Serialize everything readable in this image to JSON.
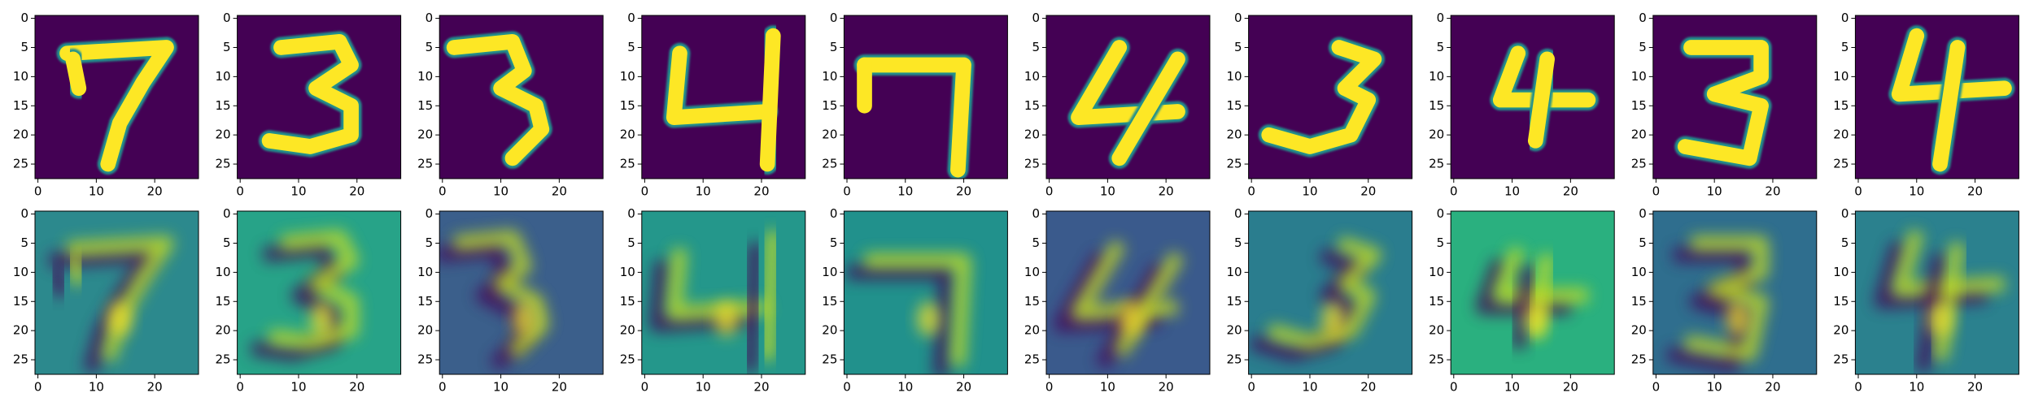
{
  "chart_data": [
    {
      "type": "image",
      "xlim": [
        -0.5,
        27.5
      ],
      "ylim": [
        27.5,
        -0.5
      ],
      "xticks": [
        0,
        10,
        20
      ],
      "yticks": [
        0,
        5,
        10,
        15,
        20,
        25
      ]
    },
    {
      "type": "image",
      "xlim": [
        -0.5,
        27.5
      ],
      "ylim": [
        27.5,
        -0.5
      ],
      "xticks": [
        0,
        10,
        20
      ],
      "yticks": [
        0,
        5,
        10,
        15,
        20,
        25
      ]
    },
    {
      "type": "image",
      "xlim": [
        -0.5,
        27.5
      ],
      "ylim": [
        27.5,
        -0.5
      ],
      "xticks": [
        0,
        10,
        20
      ],
      "yticks": [
        0,
        5,
        10,
        15,
        20,
        25
      ]
    },
    {
      "type": "image",
      "xlim": [
        -0.5,
        27.5
      ],
      "ylim": [
        27.5,
        -0.5
      ],
      "xticks": [
        0,
        10,
        20
      ],
      "yticks": [
        0,
        5,
        10,
        15,
        20,
        25
      ]
    },
    {
      "type": "image",
      "xlim": [
        -0.5,
        27.5
      ],
      "ylim": [
        27.5,
        -0.5
      ],
      "xticks": [
        0,
        10,
        20
      ],
      "yticks": [
        0,
        5,
        10,
        15,
        20,
        25
      ]
    },
    {
      "type": "image",
      "xlim": [
        -0.5,
        27.5
      ],
      "ylim": [
        27.5,
        -0.5
      ],
      "xticks": [
        0,
        10,
        20
      ],
      "yticks": [
        0,
        5,
        10,
        15,
        20,
        25
      ]
    },
    {
      "type": "image",
      "xlim": [
        -0.5,
        27.5
      ],
      "ylim": [
        27.5,
        -0.5
      ],
      "xticks": [
        0,
        10,
        20
      ],
      "yticks": [
        0,
        5,
        10,
        15,
        20,
        25
      ]
    },
    {
      "type": "image",
      "xlim": [
        -0.5,
        27.5
      ],
      "ylim": [
        27.5,
        -0.5
      ],
      "xticks": [
        0,
        10,
        20
      ],
      "yticks": [
        0,
        5,
        10,
        15,
        20,
        25
      ]
    },
    {
      "type": "image",
      "xlim": [
        -0.5,
        27.5
      ],
      "ylim": [
        27.5,
        -0.5
      ],
      "xticks": [
        0,
        10,
        20
      ],
      "yticks": [
        0,
        5,
        10,
        15,
        20,
        25
      ]
    },
    {
      "type": "image",
      "xlim": [
        -0.5,
        27.5
      ],
      "ylim": [
        27.5,
        -0.5
      ],
      "xticks": [
        0,
        10,
        20
      ],
      "yticks": [
        0,
        5,
        10,
        15,
        20,
        25
      ]
    },
    {
      "type": "image",
      "xlim": [
        -0.5,
        27.5
      ],
      "ylim": [
        27.5,
        -0.5
      ],
      "xticks": [
        0,
        10,
        20
      ],
      "yticks": [
        0,
        5,
        10,
        15,
        20,
        25
      ]
    },
    {
      "type": "image",
      "xlim": [
        -0.5,
        27.5
      ],
      "ylim": [
        27.5,
        -0.5
      ],
      "xticks": [
        0,
        10,
        20
      ],
      "yticks": [
        0,
        5,
        10,
        15,
        20,
        25
      ]
    },
    {
      "type": "image",
      "xlim": [
        -0.5,
        27.5
      ],
      "ylim": [
        27.5,
        -0.5
      ],
      "xticks": [
        0,
        10,
        20
      ],
      "yticks": [
        0,
        5,
        10,
        15,
        20,
        25
      ]
    },
    {
      "type": "image",
      "xlim": [
        -0.5,
        27.5
      ],
      "ylim": [
        27.5,
        -0.5
      ],
      "xticks": [
        0,
        10,
        20
      ],
      "yticks": [
        0,
        5,
        10,
        15,
        20,
        25
      ]
    },
    {
      "type": "image",
      "xlim": [
        -0.5,
        27.5
      ],
      "ylim": [
        27.5,
        -0.5
      ],
      "xticks": [
        0,
        10,
        20
      ],
      "yticks": [
        0,
        5,
        10,
        15,
        20,
        25
      ]
    },
    {
      "type": "image",
      "xlim": [
        -0.5,
        27.5
      ],
      "ylim": [
        27.5,
        -0.5
      ],
      "xticks": [
        0,
        10,
        20
      ],
      "yticks": [
        0,
        5,
        10,
        15,
        20,
        25
      ]
    },
    {
      "type": "image",
      "xlim": [
        -0.5,
        27.5
      ],
      "ylim": [
        27.5,
        -0.5
      ],
      "xticks": [
        0,
        10,
        20
      ],
      "yticks": [
        0,
        5,
        10,
        15,
        20,
        25
      ]
    },
    {
      "type": "image",
      "xlim": [
        -0.5,
        27.5
      ],
      "ylim": [
        27.5,
        -0.5
      ],
      "xticks": [
        0,
        10,
        20
      ],
      "yticks": [
        0,
        5,
        10,
        15,
        20,
        25
      ]
    },
    {
      "type": "image",
      "xlim": [
        -0.5,
        27.5
      ],
      "ylim": [
        27.5,
        -0.5
      ],
      "xticks": [
        0,
        10,
        20
      ],
      "yticks": [
        0,
        5,
        10,
        15,
        20,
        25
      ]
    },
    {
      "type": "image",
      "xlim": [
        -0.5,
        27.5
      ],
      "ylim": [
        27.5,
        -0.5
      ],
      "xticks": [
        0,
        10,
        20
      ],
      "yticks": [
        0,
        5,
        10,
        15,
        20,
        25
      ]
    }
  ]
}
